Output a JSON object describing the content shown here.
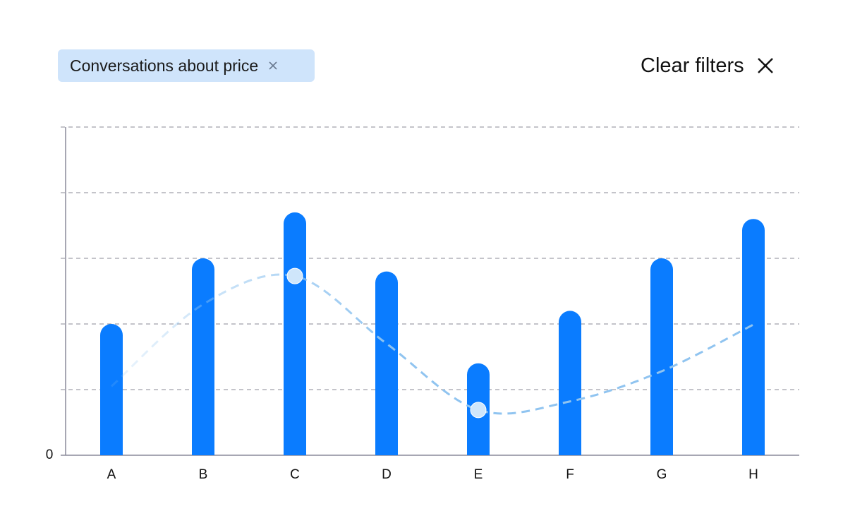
{
  "filter_chip": {
    "label": "Conversations about price"
  },
  "clear_filters": {
    "label": "Clear filters"
  },
  "chart_data": {
    "type": "bar",
    "categories": [
      "A",
      "B",
      "C",
      "D",
      "E",
      "F",
      "G",
      "H"
    ],
    "ylim": [
      0,
      5
    ],
    "yticks": [
      0
    ],
    "ygrid": [
      1,
      2,
      3,
      4,
      5
    ],
    "grid": true,
    "series": [
      {
        "type": "bar",
        "color": "#0a7cff",
        "values": [
          2.0,
          3.0,
          3.7,
          2.8,
          1.4,
          2.2,
          3.0,
          3.6
        ]
      },
      {
        "type": "line",
        "color": "#90c4f0",
        "values": [
          1.05,
          2.3,
          2.73,
          1.7,
          0.69,
          0.82,
          1.28,
          1.99
        ],
        "highlight": [
          2,
          4
        ]
      }
    ]
  }
}
